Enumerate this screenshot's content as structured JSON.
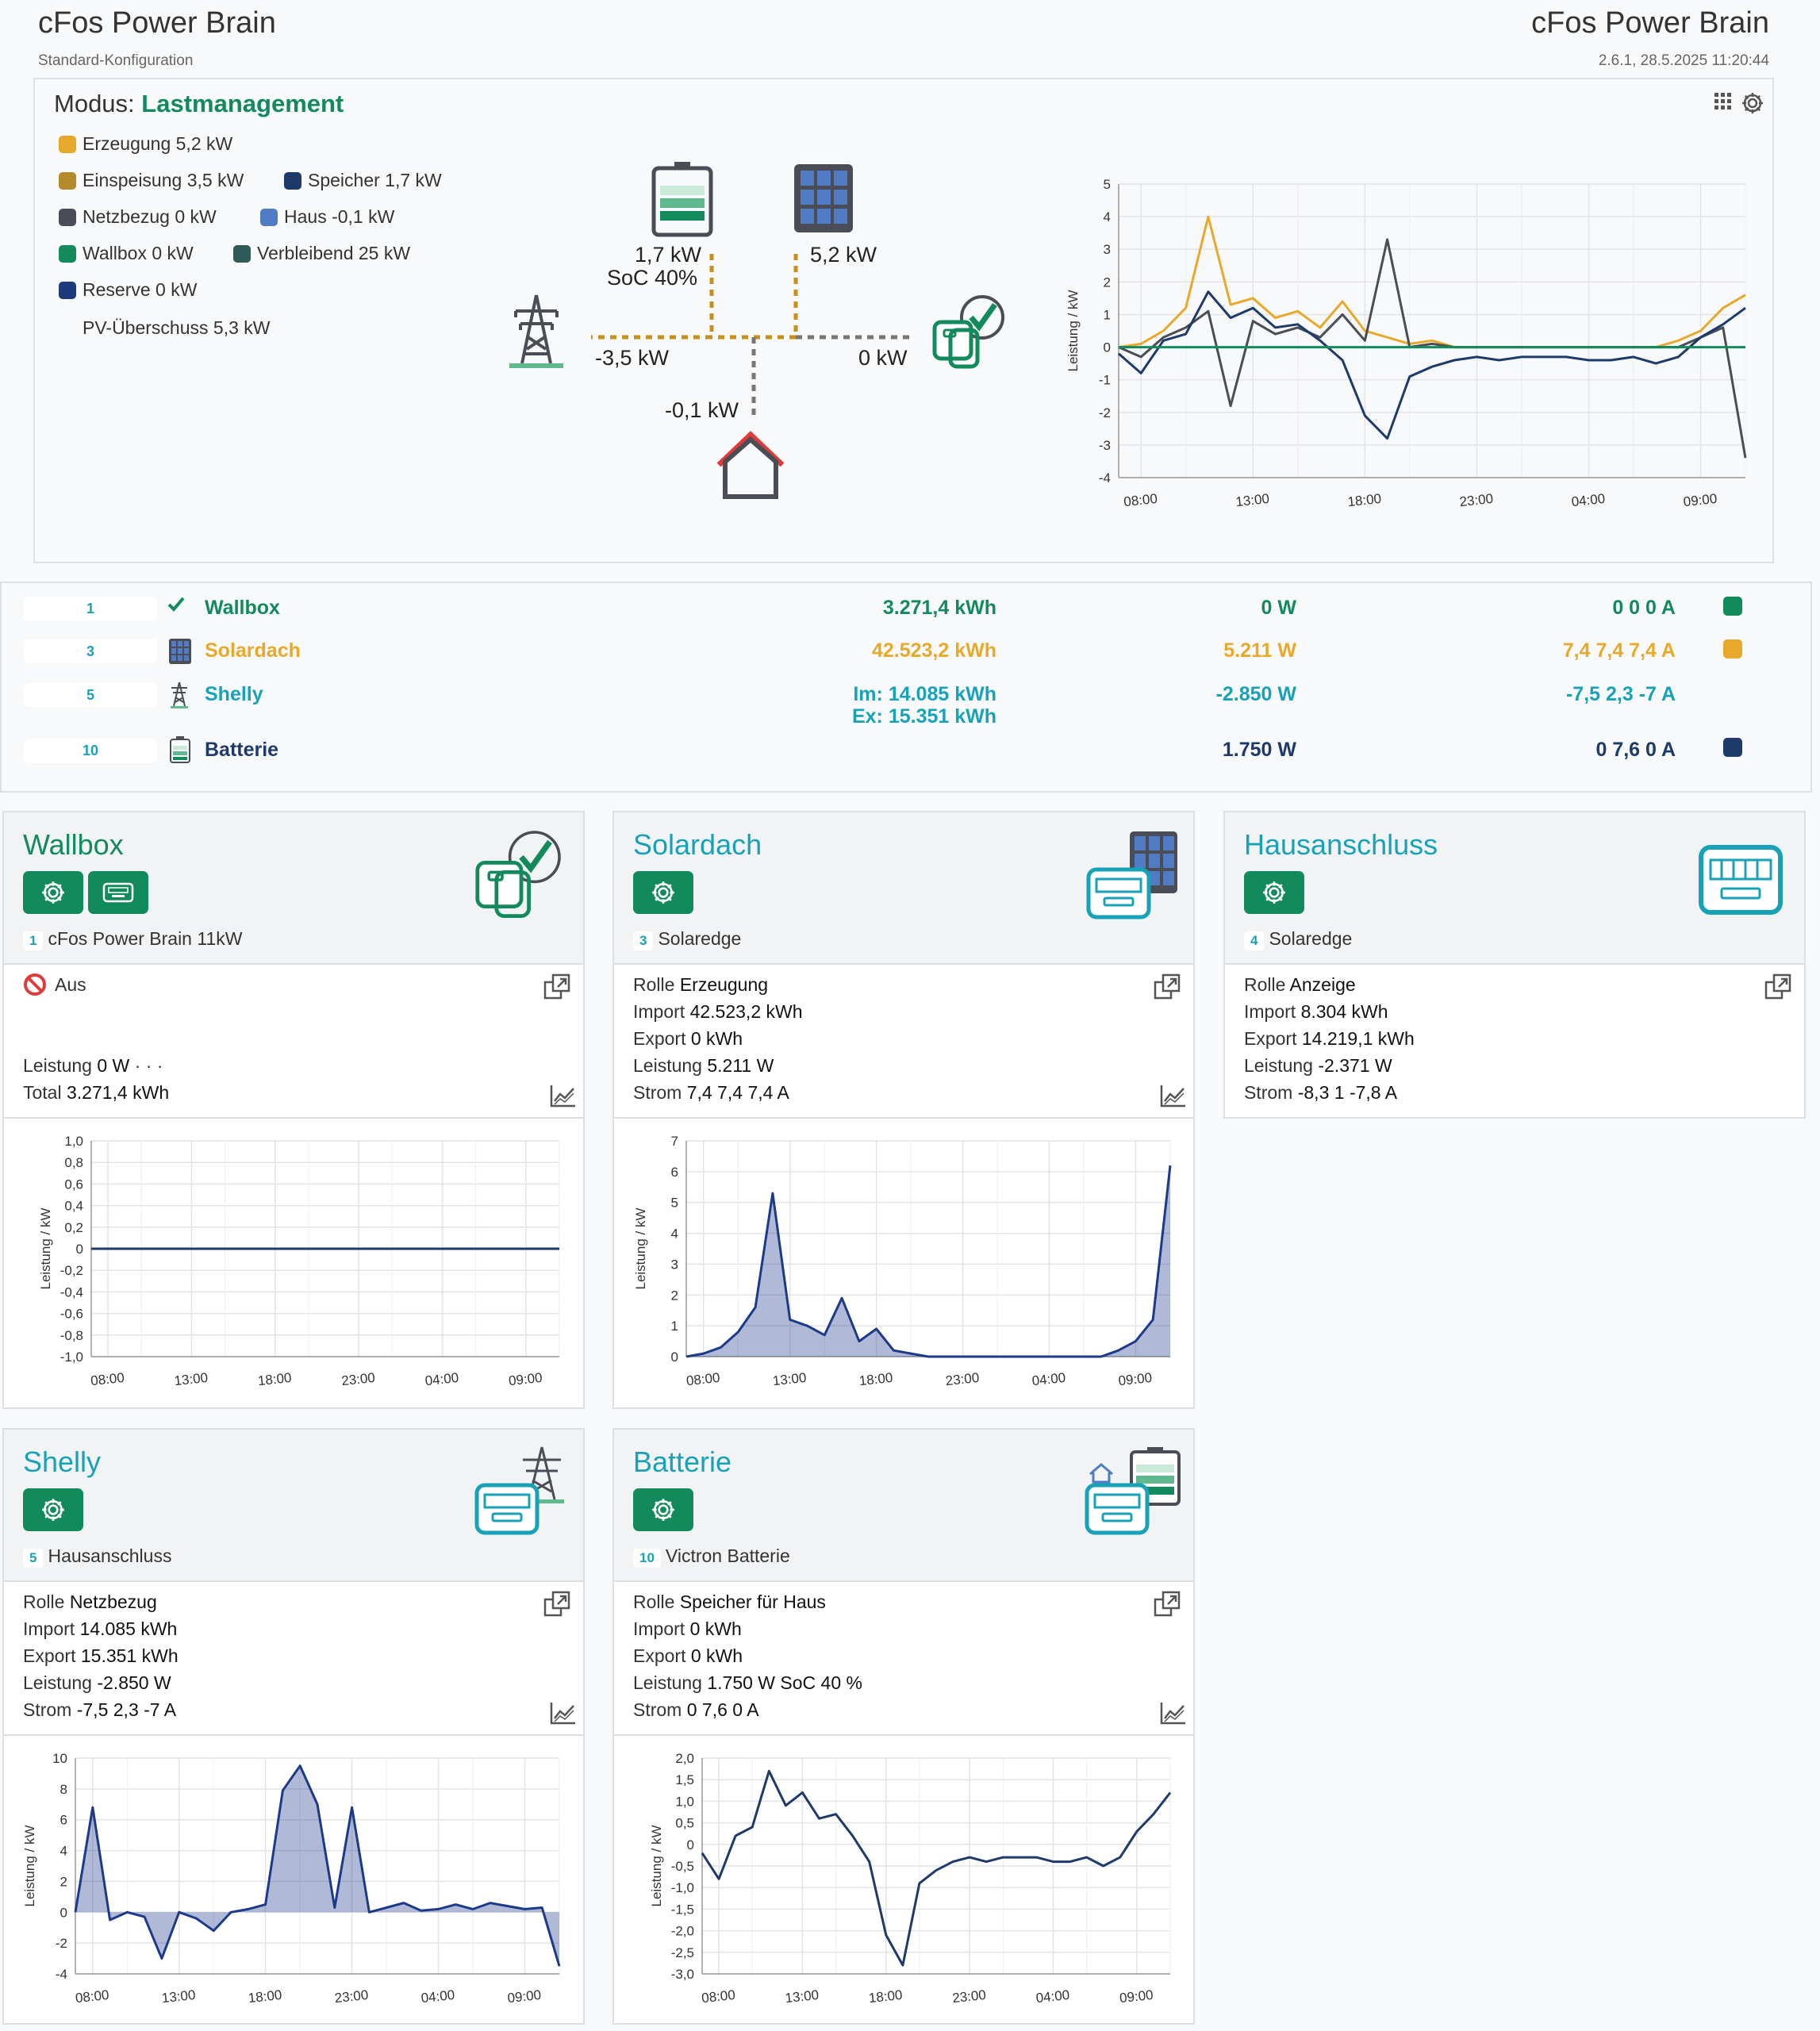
{
  "app": {
    "title": "cFos Power Brain",
    "subtitle": "Standard-Konfiguration",
    "title_right": "cFos Power Brain",
    "version": "2.6.1, 28.5.2025 11:20:44"
  },
  "mode": {
    "label": "Modus:",
    "value": "Lastmanagement"
  },
  "legend": [
    {
      "label": "Erzeugung 5,2 kW",
      "color": "#e8a92b"
    },
    {
      "label": "Einspeisung 3,5 kW",
      "color": "#b58a2a"
    },
    {
      "label": "Speicher 1,7 kW",
      "color": "#1d3a6b"
    },
    {
      "label": "Netzbezug 0 kW",
      "color": "#4a4d55"
    },
    {
      "label": "Haus -0,1 kW",
      "color": "#4f7cc4"
    },
    {
      "label": "Wallbox 0 kW",
      "color": "#128a5c"
    },
    {
      "label": "Verbleibend 25 kW",
      "color": "#2f5a58"
    },
    {
      "label": "Reserve 0 kW",
      "color": "#1d3a7a"
    }
  ],
  "pv_surplus": "PV-Überschuss 5,3 kW",
  "flow": {
    "battery_kw": "1,7 kW",
    "soc": "SoC 40%",
    "solar_kw": "5,2 kW",
    "grid_kw": "-3,5 kW",
    "wallbox_kw": "0 kW",
    "house_kw": "-0,1 kW"
  },
  "x_ticks": [
    "08:00",
    "13:00",
    "18:00",
    "23:00",
    "04:00",
    "09:00"
  ],
  "ylabel": "Leistung / kW",
  "devices": [
    {
      "num": "1",
      "name": "Wallbox",
      "energy": "3.271,4 kWh",
      "power": "0 W",
      "current": "0 0 0 A",
      "color": "#128a5c"
    },
    {
      "num": "3",
      "name": "Solardach",
      "energy": "42.523,2 kWh",
      "power": "5.211 W",
      "current": "7,4 7,4 7,4 A",
      "color": "#e8a92b"
    },
    {
      "num": "5",
      "name": "Shelly",
      "energy": "Im: 14.085 kWh",
      "energy2": "Ex: 15.351 kWh",
      "power": "-2.850 W",
      "current": "-7,5 2,3 -7 A",
      "color": "#17a2b8"
    },
    {
      "num": "10",
      "name": "Batterie",
      "energy": "",
      "power": "1.750 W",
      "current": "0 7,6 0 A",
      "color": "#1d3a6b"
    }
  ],
  "cards": {
    "wallbox": {
      "title": "Wallbox",
      "num": "1",
      "device": "cFos Power Brain 11kW",
      "status": "Aus",
      "leistung_label": "Leistung",
      "leistung": "0 W",
      "dots": "· · ·",
      "total_label": "Total",
      "total": "3.271,4 kWh"
    },
    "solar": {
      "title": "Solardach",
      "num": "3",
      "device": "Solaredge",
      "rolle_label": "Rolle",
      "rolle": "Erzeugung",
      "import_label": "Import",
      "import": "42.523,2 kWh",
      "export_label": "Export",
      "export": "0 kWh",
      "leistung_label": "Leistung",
      "leistung": "5.211 W",
      "strom_label": "Strom",
      "strom": "7,4 7,4 7,4 A"
    },
    "haus": {
      "title": "Hausanschluss",
      "num": "4",
      "device": "Solaredge",
      "rolle_label": "Rolle",
      "rolle": "Anzeige",
      "import_label": "Import",
      "import": "8.304 kWh",
      "export_label": "Export",
      "export": "14.219,1 kWh",
      "leistung_label": "Leistung",
      "leistung": "-2.371 W",
      "strom_label": "Strom",
      "strom": "-8,3 1 -7,8 A"
    },
    "shelly": {
      "title": "Shelly",
      "num": "5",
      "device": "Hausanschluss",
      "rolle_label": "Rolle",
      "rolle": "Netzbezug",
      "import_label": "Import",
      "import": "14.085 kWh",
      "export_label": "Export",
      "export": "15.351 kWh",
      "leistung_label": "Leistung",
      "leistung": "-2.850 W",
      "strom_label": "Strom",
      "strom": "-7,5 2,3 -7 A"
    },
    "batterie": {
      "title": "Batterie",
      "num": "10",
      "device": "Victron Batterie",
      "rolle_label": "Rolle",
      "rolle": "Speicher für Haus",
      "import_label": "Import",
      "import": "0 kWh",
      "export_label": "Export",
      "export": "0 kWh",
      "leistung_label": "Leistung",
      "leistung": "1.750 W SoC 40 %",
      "strom_label": "Strom",
      "strom": "0 7,6 0 A"
    }
  },
  "chart_data": [
    {
      "type": "line",
      "name": "overview",
      "ylim": [
        -4,
        5
      ],
      "yticks": [
        "5",
        "4",
        "3",
        "2",
        "1",
        "0",
        "-1",
        "-2",
        "-3",
        "-4"
      ],
      "xlabel": "",
      "ylabel": "Leistung / kW",
      "x": [
        "07:00",
        "08:00",
        "09:00",
        "10:00",
        "11:00",
        "12:00",
        "13:00",
        "14:00",
        "15:00",
        "16:00",
        "17:00",
        "18:00",
        "19:00",
        "20:00",
        "21:00",
        "22:00",
        "23:00",
        "00:00",
        "01:00",
        "02:00",
        "03:00",
        "04:00",
        "05:00",
        "06:00",
        "07:00",
        "08:00",
        "09:00",
        "10:00",
        "11:00"
      ],
      "series": [
        {
          "label": "Erzeugung",
          "color": "#e8a92b",
          "values": [
            0,
            0.1,
            0.5,
            1.2,
            4,
            1.3,
            1.5,
            0.9,
            1.1,
            0.6,
            1.4,
            0.5,
            0.3,
            0.1,
            0.2,
            0,
            0,
            0,
            0,
            0,
            0,
            0,
            0,
            0,
            0,
            0.2,
            0.5,
            1.2,
            1.6
          ]
        },
        {
          "label": "Netz",
          "color": "#4a4d55",
          "values": [
            0,
            -0.3,
            0.3,
            0.6,
            1.1,
            -1.8,
            0.8,
            0.4,
            0.6,
            0.3,
            1.0,
            0.2,
            3.3,
            0,
            0.1,
            0,
            0,
            0,
            0,
            0,
            0,
            0,
            0,
            0,
            0,
            0,
            0.3,
            0.6,
            -3.4
          ]
        },
        {
          "label": "Speicher",
          "color": "#1d3a6b",
          "values": [
            -0.2,
            -0.8,
            0.2,
            0.4,
            1.7,
            0.9,
            1.2,
            0.6,
            0.7,
            0.2,
            -0.4,
            -2.1,
            -2.8,
            -0.9,
            -0.6,
            -0.4,
            -0.3,
            -0.4,
            -0.3,
            -0.3,
            -0.3,
            -0.4,
            -0.4,
            -0.3,
            -0.5,
            -0.3,
            0.3,
            0.7,
            1.2
          ]
        },
        {
          "label": "Wallbox",
          "color": "#128a5c",
          "values": [
            0,
            0,
            0,
            0,
            0,
            0,
            0,
            0,
            0,
            0,
            0,
            0,
            0,
            0,
            0,
            0,
            0,
            0,
            0,
            0,
            0,
            0,
            0,
            0,
            0,
            0,
            0,
            0,
            0
          ]
        }
      ]
    },
    {
      "type": "line",
      "name": "wallbox",
      "ylim": [
        -1,
        1
      ],
      "yticks": [
        "1,0",
        "0,8",
        "0,6",
        "0,4",
        "0,2",
        "0",
        "-0,2",
        "-0,4",
        "-0,6",
        "-0,8",
        "-1,0"
      ],
      "ylabel": "Leistung / kW",
      "x": [
        "07:00",
        "08:00",
        "09:00",
        "10:00",
        "11:00",
        "12:00",
        "13:00",
        "14:00",
        "15:00",
        "16:00",
        "17:00",
        "18:00",
        "19:00",
        "20:00",
        "21:00",
        "22:00",
        "23:00",
        "00:00",
        "01:00",
        "02:00",
        "03:00",
        "04:00",
        "05:00",
        "06:00",
        "07:00",
        "08:00",
        "09:00",
        "10:00",
        "11:00"
      ],
      "series": [
        {
          "label": "Wallbox",
          "color": "#1d3a6b",
          "values": [
            0,
            0,
            0,
            0,
            0,
            0,
            0,
            0,
            0,
            0,
            0,
            0,
            0,
            0,
            0,
            0,
            0,
            0,
            0,
            0,
            0,
            0,
            0,
            0,
            0,
            0,
            0,
            0,
            0
          ]
        }
      ]
    },
    {
      "type": "area",
      "name": "solar",
      "ylim": [
        0,
        7
      ],
      "yticks": [
        "7",
        "6",
        "5",
        "4",
        "3",
        "2",
        "1",
        "0"
      ],
      "ylabel": "Leistung / kW",
      "x": [
        "07:00",
        "08:00",
        "09:00",
        "10:00",
        "11:00",
        "12:00",
        "13:00",
        "14:00",
        "15:00",
        "16:00",
        "17:00",
        "18:00",
        "19:00",
        "20:00",
        "21:00",
        "22:00",
        "23:00",
        "00:00",
        "01:00",
        "02:00",
        "03:00",
        "04:00",
        "05:00",
        "06:00",
        "07:00",
        "08:00",
        "09:00",
        "10:00",
        "11:00"
      ],
      "series": [
        {
          "label": "Solardach",
          "color": "#1d3a8a",
          "values": [
            0,
            0.1,
            0.3,
            0.8,
            1.6,
            5.3,
            1.2,
            1.0,
            0.7,
            1.9,
            0.5,
            0.9,
            0.2,
            0.1,
            0,
            0,
            0,
            0,
            0,
            0,
            0,
            0,
            0,
            0,
            0,
            0.2,
            0.5,
            1.2,
            6.2
          ]
        }
      ]
    },
    {
      "type": "area",
      "name": "shelly",
      "ylim": [
        -4,
        10
      ],
      "yticks": [
        "10",
        "8",
        "6",
        "4",
        "2",
        "0",
        "-2",
        "-4"
      ],
      "ylabel": "Leistung / kW",
      "x": [
        "07:00",
        "08:00",
        "09:00",
        "10:00",
        "11:00",
        "12:00",
        "13:00",
        "14:00",
        "15:00",
        "16:00",
        "17:00",
        "18:00",
        "19:00",
        "20:00",
        "21:00",
        "22:00",
        "23:00",
        "00:00",
        "01:00",
        "02:00",
        "03:00",
        "04:00",
        "05:00",
        "06:00",
        "07:00",
        "08:00",
        "09:00",
        "10:00",
        "11:00"
      ],
      "series": [
        {
          "label": "Shelly",
          "color": "#1d3a8a",
          "values": [
            0,
            6.8,
            -0.5,
            0,
            -0.3,
            -3,
            0,
            -0.4,
            -1.2,
            0,
            0.2,
            0.5,
            7.9,
            9.5,
            7,
            0.3,
            6.8,
            0,
            0.3,
            0.6,
            0.1,
            0.2,
            0.5,
            0.2,
            0.6,
            0.4,
            0.2,
            0.3,
            -3.5
          ]
        }
      ]
    },
    {
      "type": "line",
      "name": "batterie",
      "ylim": [
        -3,
        2
      ],
      "yticks": [
        "2,0",
        "1,5",
        "1,0",
        "0,5",
        "0",
        "-0,5",
        "-1,0",
        "-1,5",
        "-2,0",
        "-2,5",
        "-3,0"
      ],
      "ylabel": "Leistung / kW",
      "x": [
        "07:00",
        "08:00",
        "09:00",
        "10:00",
        "11:00",
        "12:00",
        "13:00",
        "14:00",
        "15:00",
        "16:00",
        "17:00",
        "18:00",
        "19:00",
        "20:00",
        "21:00",
        "22:00",
        "23:00",
        "00:00",
        "01:00",
        "02:00",
        "03:00",
        "04:00",
        "05:00",
        "06:00",
        "07:00",
        "08:00",
        "09:00",
        "10:00",
        "11:00"
      ],
      "series": [
        {
          "label": "Batterie",
          "color": "#1d3a6b",
          "values": [
            -0.2,
            -0.8,
            0.2,
            0.4,
            1.7,
            0.9,
            1.2,
            0.6,
            0.7,
            0.2,
            -0.4,
            -2.1,
            -2.8,
            -0.9,
            -0.6,
            -0.4,
            -0.3,
            -0.4,
            -0.3,
            -0.3,
            -0.3,
            -0.4,
            -0.4,
            -0.3,
            -0.5,
            -0.3,
            0.3,
            0.7,
            1.2
          ]
        }
      ]
    }
  ]
}
